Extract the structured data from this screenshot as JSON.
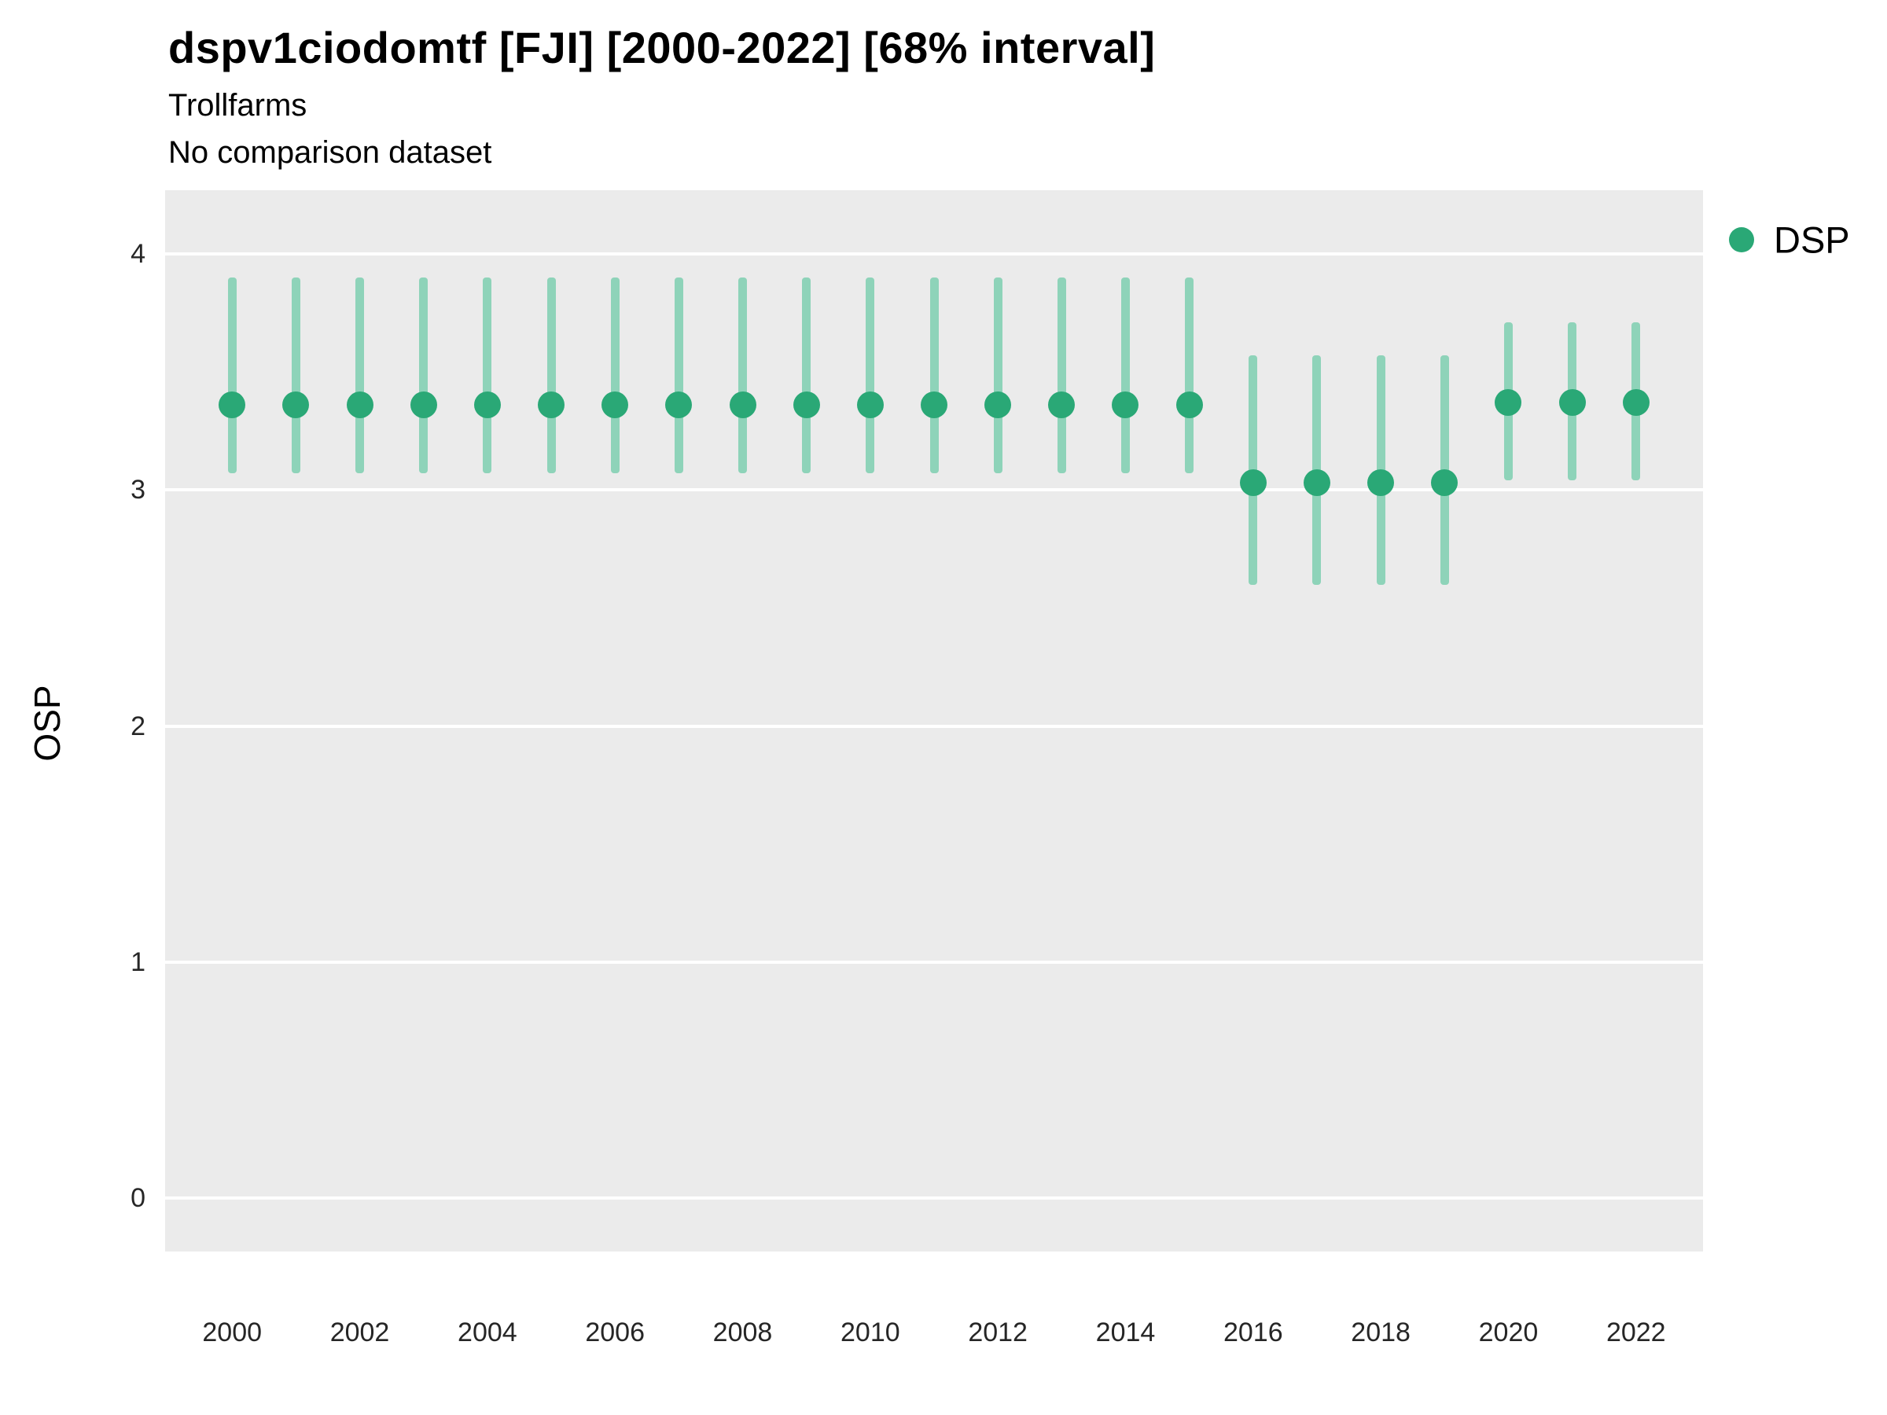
{
  "header": {
    "title": "dspv1ciodomtf [FJI] [2000-2022] [68% interval]",
    "subtitle": "Trollfarms",
    "comparison_note": "No comparison dataset"
  },
  "axes": {
    "ylabel": "OSP"
  },
  "legend": {
    "label": "DSP"
  },
  "colors": {
    "point": "#2aa876",
    "interval": "#8ed3b9",
    "panel": "#ebebeb",
    "grid": "#ffffff"
  },
  "chart_data": {
    "type": "scatter",
    "series_name": "DSP",
    "interval": "68%",
    "title": "dspv1ciodomtf [FJI] [2000-2022] [68% interval]",
    "xlabel": "",
    "ylabel": "OSP",
    "x": [
      2000,
      2001,
      2002,
      2003,
      2004,
      2005,
      2006,
      2007,
      2008,
      2009,
      2010,
      2011,
      2012,
      2013,
      2014,
      2015,
      2016,
      2017,
      2018,
      2019,
      2020,
      2021,
      2022
    ],
    "values": [
      3.36,
      3.36,
      3.36,
      3.36,
      3.36,
      3.36,
      3.36,
      3.36,
      3.36,
      3.36,
      3.36,
      3.36,
      3.36,
      3.36,
      3.36,
      3.36,
      3.03,
      3.03,
      3.03,
      3.03,
      3.37,
      3.37,
      3.37
    ],
    "lower": [
      3.07,
      3.07,
      3.07,
      3.07,
      3.07,
      3.07,
      3.07,
      3.07,
      3.07,
      3.07,
      3.07,
      3.07,
      3.07,
      3.07,
      3.07,
      3.07,
      2.6,
      2.6,
      2.6,
      2.6,
      3.04,
      3.04,
      3.04
    ],
    "upper": [
      3.9,
      3.9,
      3.9,
      3.9,
      3.9,
      3.9,
      3.9,
      3.9,
      3.9,
      3.9,
      3.9,
      3.9,
      3.9,
      3.9,
      3.9,
      3.9,
      3.57,
      3.57,
      3.57,
      3.57,
      3.71,
      3.71,
      3.71
    ],
    "xticks": [
      2000,
      2002,
      2004,
      2006,
      2008,
      2010,
      2012,
      2014,
      2016,
      2018,
      2020,
      2022
    ],
    "yticks": [
      0,
      1,
      2,
      3,
      4
    ],
    "xlim": [
      1998.95,
      2023.05
    ],
    "ylim": [
      -0.225,
      4.27
    ],
    "grid": true,
    "legend_position": "right"
  }
}
